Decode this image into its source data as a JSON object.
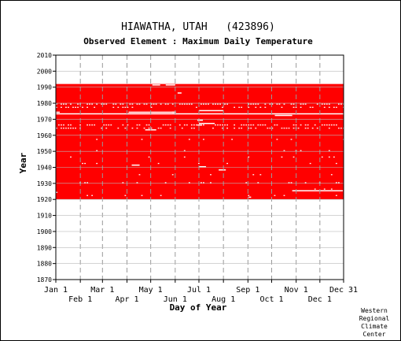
{
  "chart_data": {
    "type": "heatmap",
    "title": "HIAWATHA, UTAH   (423896)",
    "subtitle": "Observed Element : Maximum Daily Temperature",
    "xlabel": "Day of Year",
    "ylabel": "Year",
    "xlim": [
      1,
      365
    ],
    "ylim": [
      1870,
      2010
    ],
    "x_ticks_upper": [
      {
        "day": 1,
        "label": "Jan 1"
      },
      {
        "day": 60,
        "label": "Mar 1"
      },
      {
        "day": 121,
        "label": "May 1"
      },
      {
        "day": 182,
        "label": "Jul 1"
      },
      {
        "day": 244,
        "label": "Sep 1"
      },
      {
        "day": 305,
        "label": "Nov 1"
      },
      {
        "day": 365,
        "label": "Dec 31"
      }
    ],
    "x_ticks_lower": [
      {
        "day": 32,
        "label": "Feb 1"
      },
      {
        "day": 91,
        "label": "Apr 1"
      },
      {
        "day": 152,
        "label": "Jun 1"
      },
      {
        "day": 213,
        "label": "Aug 1"
      },
      {
        "day": 274,
        "label": "Oct 1"
      },
      {
        "day": 335,
        "label": "Dec 1"
      }
    ],
    "y_ticks": [
      1870,
      1880,
      1890,
      1900,
      1910,
      1920,
      1930,
      1940,
      1950,
      1960,
      1970,
      1980,
      1990,
      2000,
      2010
    ],
    "record_period": [
      1920,
      1991
    ],
    "data_color": "#ff0000",
    "grid": true,
    "missing_data": [
      {
        "year": 1973,
        "day_start": 1,
        "day_end": 365
      },
      {
        "year": 1974,
        "day_start": 1,
        "day_end": 6
      },
      {
        "year": 1974,
        "day_start": 93,
        "day_end": 152
      },
      {
        "year": 1974,
        "day_start": 148,
        "day_end": 153
      },
      {
        "year": 1975,
        "day_start": 182,
        "day_end": 213
      },
      {
        "year": 1967,
        "day_start": 182,
        "day_end": 202
      },
      {
        "year": 1969,
        "day_start": 180,
        "day_end": 187
      },
      {
        "year": 1966,
        "day_start": 180,
        "day_end": 186
      },
      {
        "year": 1963,
        "day_start": 114,
        "day_end": 128
      },
      {
        "year": 1972,
        "day_start": 278,
        "day_end": 300
      },
      {
        "year": 1986,
        "day_start": 155,
        "day_end": 160
      },
      {
        "year": 1991,
        "day_start": 123,
        "day_end": 133
      },
      {
        "year": 1991,
        "day_start": 140,
        "day_end": 152
      },
      {
        "year": 1941,
        "day_start": 97,
        "day_end": 107
      },
      {
        "year": 1940,
        "day_start": 182,
        "day_end": 191
      },
      {
        "year": 1938,
        "day_start": 207,
        "day_end": 216
      },
      {
        "year": 1925,
        "day_start": 300,
        "day_end": 364
      },
      {
        "year": 1921,
        "day_start": 245,
        "day_end": 248
      },
      {
        "year": 1924,
        "day_start": 1,
        "day_end": 3
      }
    ],
    "missing_stripes": [
      {
        "year": 1979,
        "density": 0.5
      },
      {
        "year": 1977,
        "density": 0.3
      },
      {
        "year": 1966,
        "density": 0.5
      },
      {
        "year": 1964,
        "density": 0.35
      },
      {
        "year": 1957,
        "density": 0.08
      },
      {
        "year": 1950,
        "density": 0.06
      },
      {
        "year": 1946,
        "density": 0.05
      },
      {
        "year": 1942,
        "density": 0.05
      },
      {
        "year": 1935,
        "density": 0.06
      },
      {
        "year": 1930,
        "density": 0.07
      },
      {
        "year": 1926,
        "density": 0.06
      },
      {
        "year": 1922,
        "density": 0.05
      }
    ]
  },
  "credit": [
    "Western",
    "Regional",
    "Climate",
    "Center"
  ]
}
